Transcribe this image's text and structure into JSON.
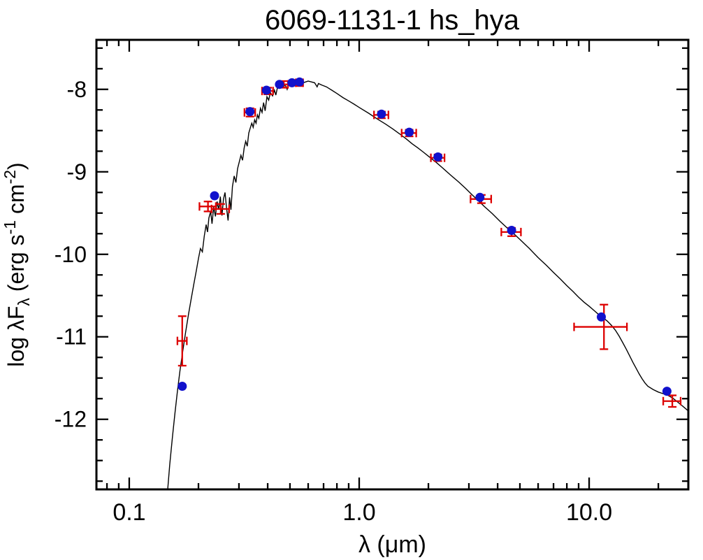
{
  "chart_data": {
    "type": "line",
    "title": "6069-1131-1   hs_hya",
    "xlabel_parts": [
      {
        "text": "λ (μm)"
      }
    ],
    "ylabel_parts": [
      {
        "text": "log λF"
      },
      {
        "text": "λ",
        "style": "sub"
      },
      {
        "text": " (erg s"
      },
      {
        "text": "-1",
        "style": "sup"
      },
      {
        "text": " cm"
      },
      {
        "text": "-2",
        "style": "sup"
      },
      {
        "text": ")"
      }
    ],
    "x_scale": "log",
    "xlim": [
      0.072,
      27.0
    ],
    "ylim": [
      -12.85,
      -7.4
    ],
    "grid": false,
    "legend": "none",
    "xticks": [
      {
        "value": 0.1,
        "label": "0.1"
      },
      {
        "value": 1.0,
        "label": "1.0"
      },
      {
        "value": 10.0,
        "label": "10.0"
      }
    ],
    "yticks": [
      {
        "value": -8,
        "label": "-8"
      },
      {
        "value": -9,
        "label": "-9"
      },
      {
        "value": -10,
        "label": "-10"
      },
      {
        "value": -11,
        "label": "-11"
      },
      {
        "value": -12,
        "label": "-12"
      }
    ],
    "colors": {
      "model_line": "#000000",
      "observed_photometry": "#dd0000",
      "model_photometry": "#1111cc",
      "frame": "#000000"
    },
    "model_spectrum": [
      [
        0.147,
        -12.85
      ],
      [
        0.15,
        -12.55
      ],
      [
        0.154,
        -12.22
      ],
      [
        0.158,
        -11.93
      ],
      [
        0.162,
        -11.66
      ],
      [
        0.166,
        -11.42
      ],
      [
        0.171,
        -11.17
      ],
      [
        0.176,
        -10.94
      ],
      [
        0.181,
        -10.73
      ],
      [
        0.186,
        -10.54
      ],
      [
        0.191,
        -10.36
      ],
      [
        0.196,
        -10.19
      ],
      [
        0.2,
        -10.05
      ],
      [
        0.204,
        -9.93
      ],
      [
        0.208,
        -9.97
      ],
      [
        0.212,
        -9.78
      ],
      [
        0.216,
        -9.64
      ],
      [
        0.219,
        -9.73
      ],
      [
        0.222,
        -9.56
      ],
      [
        0.226,
        -9.48
      ],
      [
        0.229,
        -9.63
      ],
      [
        0.233,
        -9.43
      ],
      [
        0.237,
        -9.54
      ],
      [
        0.241,
        -9.36
      ],
      [
        0.245,
        -9.46
      ],
      [
        0.249,
        -9.3
      ],
      [
        0.253,
        -9.53
      ],
      [
        0.257,
        -9.33
      ],
      [
        0.261,
        -9.25
      ],
      [
        0.265,
        -9.44
      ],
      [
        0.269,
        -9.59
      ],
      [
        0.273,
        -9.31
      ],
      [
        0.277,
        -9.46
      ],
      [
        0.281,
        -9.18
      ],
      [
        0.286,
        -9.05
      ],
      [
        0.291,
        -9.13
      ],
      [
        0.296,
        -8.96
      ],
      [
        0.301,
        -8.88
      ],
      [
        0.306,
        -8.8
      ],
      [
        0.311,
        -8.86
      ],
      [
        0.316,
        -8.71
      ],
      [
        0.321,
        -8.63
      ],
      [
        0.326,
        -8.69
      ],
      [
        0.331,
        -8.53
      ],
      [
        0.336,
        -8.47
      ],
      [
        0.341,
        -8.41
      ],
      [
        0.346,
        -8.46
      ],
      [
        0.351,
        -8.37
      ],
      [
        0.356,
        -8.41
      ],
      [
        0.361,
        -8.31
      ],
      [
        0.366,
        -8.35
      ],
      [
        0.372,
        -8.23
      ],
      [
        0.378,
        -8.28
      ],
      [
        0.384,
        -8.16
      ],
      [
        0.39,
        -8.26
      ],
      [
        0.397,
        -8.09
      ],
      [
        0.404,
        -8.13
      ],
      [
        0.411,
        -8.04
      ],
      [
        0.42,
        -8.08
      ],
      [
        0.428,
        -8.01
      ],
      [
        0.434,
        -8.07
      ],
      [
        0.441,
        -7.98
      ],
      [
        0.45,
        -7.97
      ],
      [
        0.46,
        -7.98
      ],
      [
        0.47,
        -7.95
      ],
      [
        0.48,
        -7.96
      ],
      [
        0.486,
        -8.0
      ],
      [
        0.493,
        -7.94
      ],
      [
        0.505,
        -7.93
      ],
      [
        0.515,
        -7.94
      ],
      [
        0.525,
        -7.92
      ],
      [
        0.54,
        -7.93
      ],
      [
        0.555,
        -7.91
      ],
      [
        0.57,
        -7.92
      ],
      [
        0.585,
        -7.91
      ],
      [
        0.6,
        -7.9
      ],
      [
        0.62,
        -7.91
      ],
      [
        0.64,
        -7.92
      ],
      [
        0.656,
        -7.97
      ],
      [
        0.665,
        -7.93
      ],
      [
        0.69,
        -7.95
      ],
      [
        0.72,
        -7.97
      ],
      [
        0.76,
        -8.01
      ],
      [
        0.8,
        -8.05
      ],
      [
        0.85,
        -8.1
      ],
      [
        0.9,
        -8.14
      ],
      [
        0.95,
        -8.18
      ],
      [
        1.0,
        -8.22
      ],
      [
        1.1,
        -8.29
      ],
      [
        1.2,
        -8.36
      ],
      [
        1.3,
        -8.42
      ],
      [
        1.4,
        -8.48
      ],
      [
        1.5,
        -8.54
      ],
      [
        1.6,
        -8.6
      ],
      [
        1.7,
        -8.66
      ],
      [
        1.8,
        -8.71
      ],
      [
        1.9,
        -8.76
      ],
      [
        2.0,
        -8.81
      ],
      [
        2.15,
        -8.88
      ],
      [
        2.3,
        -8.95
      ],
      [
        2.5,
        -9.04
      ],
      [
        2.7,
        -9.12
      ],
      [
        2.9,
        -9.2
      ],
      [
        3.1,
        -9.28
      ],
      [
        3.3,
        -9.35
      ],
      [
        3.5,
        -9.42
      ],
      [
        3.8,
        -9.51
      ],
      [
        4.1,
        -9.6
      ],
      [
        4.4,
        -9.68
      ],
      [
        4.7,
        -9.75
      ],
      [
        5.0,
        -9.82
      ],
      [
        5.5,
        -9.93
      ],
      [
        6.0,
        -10.04
      ],
      [
        6.5,
        -10.13
      ],
      [
        7.0,
        -10.22
      ],
      [
        7.5,
        -10.3
      ],
      [
        8.0,
        -10.38
      ],
      [
        8.5,
        -10.45
      ],
      [
        9.0,
        -10.52
      ],
      [
        9.5,
        -10.58
      ],
      [
        10.0,
        -10.63
      ],
      [
        10.5,
        -10.68
      ],
      [
        11.0,
        -10.73
      ],
      [
        11.5,
        -10.77
      ],
      [
        12.0,
        -10.81
      ],
      [
        12.5,
        -10.86
      ],
      [
        13.0,
        -10.92
      ],
      [
        13.5,
        -10.99
      ],
      [
        14.0,
        -11.07
      ],
      [
        14.5,
        -11.15
      ],
      [
        15.0,
        -11.23
      ],
      [
        15.5,
        -11.31
      ],
      [
        16.0,
        -11.38
      ],
      [
        16.5,
        -11.45
      ],
      [
        17.0,
        -11.51
      ],
      [
        17.5,
        -11.56
      ],
      [
        18.0,
        -11.6
      ],
      [
        19.0,
        -11.64
      ],
      [
        20.0,
        -11.67
      ],
      [
        21.0,
        -11.69
      ],
      [
        22.0,
        -11.71
      ],
      [
        23.0,
        -11.74
      ],
      [
        24.0,
        -11.78
      ],
      [
        25.0,
        -11.82
      ],
      [
        26.0,
        -11.86
      ],
      [
        27.0,
        -11.9
      ]
    ],
    "observed_photometry": [
      {
        "x": 0.17,
        "y": -11.05,
        "xerr": 0.008,
        "yerr": 0.3
      },
      {
        "x": 0.22,
        "y": -9.42,
        "xerr": 0.018,
        "yerr": 0.06
      },
      {
        "x": 0.25,
        "y": -9.45,
        "xerr": 0.022,
        "yerr": 0.06
      },
      {
        "x": 0.335,
        "y": -8.28,
        "xerr": 0.018,
        "yerr": 0.05
      },
      {
        "x": 0.4,
        "y": -8.02,
        "xerr": 0.022,
        "yerr": 0.04
      },
      {
        "x": 0.47,
        "y": -7.94,
        "xerr": 0.02,
        "yerr": 0.04
      },
      {
        "x": 0.55,
        "y": -7.92,
        "xerr": 0.02,
        "yerr": 0.04
      },
      {
        "x": 1.25,
        "y": -8.31,
        "xerr": 0.09,
        "yerr": 0.04
      },
      {
        "x": 1.65,
        "y": -8.53,
        "xerr": 0.12,
        "yerr": 0.04
      },
      {
        "x": 2.2,
        "y": -8.83,
        "xerr": 0.15,
        "yerr": 0.04
      },
      {
        "x": 3.4,
        "y": -9.33,
        "xerr": 0.35,
        "yerr": 0.05
      },
      {
        "x": 4.6,
        "y": -9.73,
        "xerr": 0.45,
        "yerr": 0.05
      },
      {
        "x": 11.6,
        "y": -10.88,
        "xerr": 3.0,
        "yerr": 0.27
      },
      {
        "x": 23.0,
        "y": -11.78,
        "xerr": 2.0,
        "yerr": 0.07
      }
    ],
    "model_photometry": [
      {
        "x": 0.17,
        "y": -11.6
      },
      {
        "x": 0.235,
        "y": -9.29
      },
      {
        "x": 0.335,
        "y": -8.27
      },
      {
        "x": 0.395,
        "y": -8.01
      },
      {
        "x": 0.45,
        "y": -7.94
      },
      {
        "x": 0.51,
        "y": -7.92
      },
      {
        "x": 0.55,
        "y": -7.91
      },
      {
        "x": 1.25,
        "y": -8.3
      },
      {
        "x": 1.65,
        "y": -8.52
      },
      {
        "x": 2.2,
        "y": -8.82
      },
      {
        "x": 3.35,
        "y": -9.31
      },
      {
        "x": 4.6,
        "y": -9.71
      },
      {
        "x": 11.3,
        "y": -10.76
      },
      {
        "x": 21.8,
        "y": -11.66
      }
    ]
  }
}
